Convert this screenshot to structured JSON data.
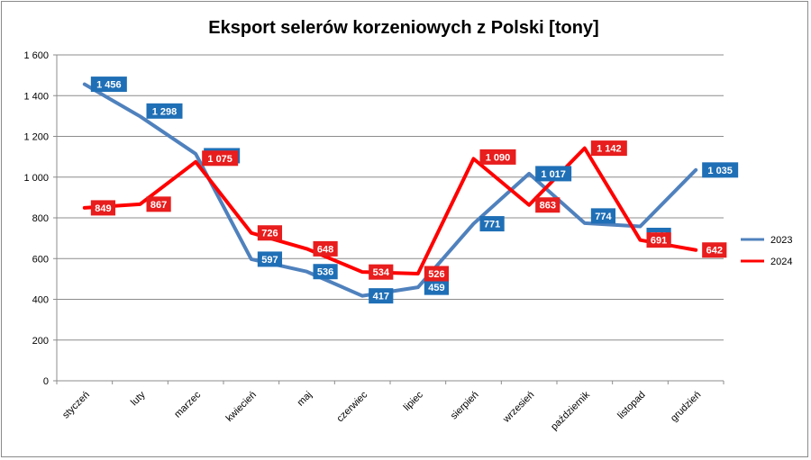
{
  "chart_data": {
    "type": "line",
    "title": "Eksport selerów korzeniowych z Polski [tony]",
    "categories": [
      "styczeń",
      "luty",
      "marzec",
      "kwiecień",
      "maj",
      "czerwiec",
      "lipiec",
      "sierpień",
      "wrzesień",
      "październik",
      "listopad",
      "grudzień"
    ],
    "series": [
      {
        "name": "2023",
        "color": "#4f81bd",
        "label_color": "#1f6fb6",
        "values": [
          1456,
          1298,
          1114,
          597,
          536,
          417,
          459,
          771,
          1017,
          774,
          758,
          1035
        ],
        "labels": [
          "1 456",
          "1 298",
          "1 114",
          "597",
          "536",
          "417",
          "459",
          "771",
          "1 017",
          "774",
          "758",
          "1 035"
        ]
      },
      {
        "name": "2024",
        "color": "#ff0000",
        "label_color": "#e81d1d",
        "values": [
          849,
          867,
          1075,
          726,
          648,
          534,
          526,
          1090,
          863,
          1142,
          691,
          642
        ],
        "labels": [
          "849",
          "867",
          "1 075",
          "726",
          "648",
          "534",
          "526",
          "1 090",
          "863",
          "1 142",
          "691",
          "642"
        ]
      }
    ],
    "ylim": [
      0,
      1600
    ],
    "yticks": [
      0,
      200,
      400,
      600,
      800,
      1000,
      1200,
      1400,
      1600
    ],
    "ytick_labels": [
      "0",
      "200",
      "400",
      "600",
      "800",
      "1 000",
      "1 200",
      "1 400",
      "1 600"
    ],
    "grid": true,
    "legend": "right"
  }
}
